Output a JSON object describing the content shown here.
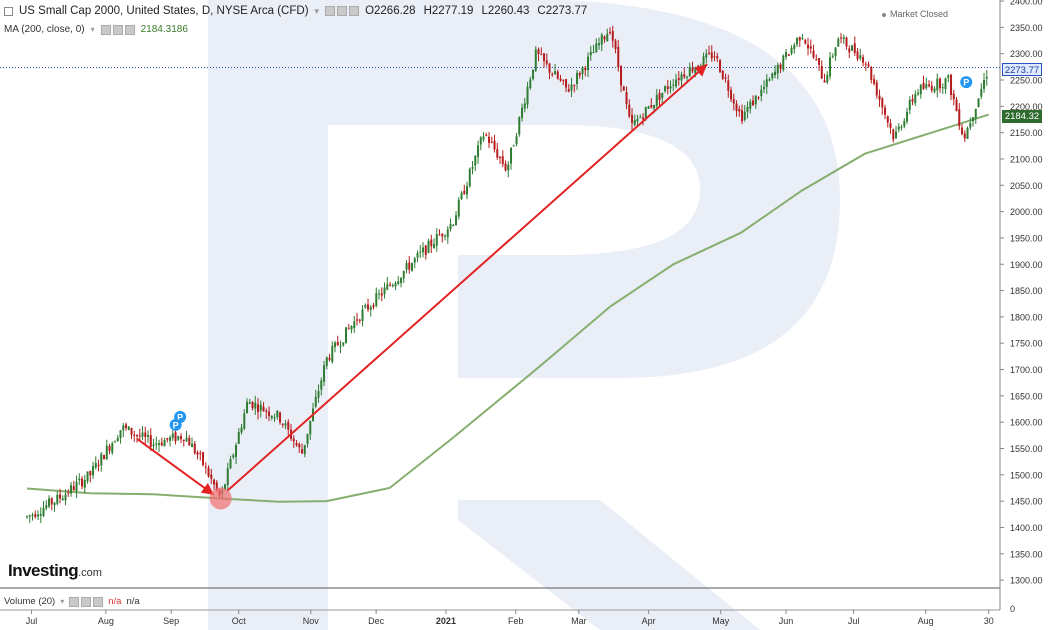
{
  "header": {
    "symbol_title": "US Small Cap 2000, United States, D, NYSE Arca (CFD)",
    "open": "O2266.28",
    "high": "H2277.19",
    "low": "L2260.43",
    "close": "C2273.77",
    "ma_label": "MA (200, close, 0)",
    "ma_value": "2184.3186",
    "market_status": "Market Closed"
  },
  "price_badges": {
    "last": "2273.77",
    "ma": "2184.32"
  },
  "volume_pane": {
    "label": "Volume (20)",
    "value1": "n/a",
    "value2": "n/a"
  },
  "branding": {
    "logo_main": "Investing",
    "logo_suffix": ".com"
  },
  "colors": {
    "up": "#2e7d32",
    "down": "#b71c1c",
    "ma_line": "#86ae6f",
    "arrow": "#e32222",
    "last_price_line": "#2a52be"
  },
  "chart_data": {
    "type": "candlestick",
    "title": "US Small Cap 2000, United States, D, NYSE Arca (CFD)",
    "ylim": [
      1285,
      2402
    ],
    "y_ticks": [
      "2400.00",
      "2350.00",
      "2300.00",
      "2250.00",
      "2200.00",
      "2150.00",
      "2100.00",
      "2050.00",
      "2000.00",
      "1950.00",
      "1900.00",
      "1850.00",
      "1800.00",
      "1750.00",
      "1700.00",
      "1650.00",
      "1600.00",
      "1550.00",
      "1500.00",
      "1450.00",
      "1400.00",
      "1350.00",
      "1300.00"
    ],
    "x_labels": [
      "Jul",
      "Aug",
      "Sep",
      "Oct",
      "Nov",
      "Dec",
      "2021",
      "Feb",
      "Mar",
      "Apr",
      "May",
      "Jun",
      "Jul",
      "Aug",
      "30"
    ],
    "last_price": 2273.77,
    "ma_200_last": 2184.32,
    "price_path": [
      {
        "date": "2020-06-29",
        "close": 1420
      },
      {
        "date": "2020-07-13",
        "close": 1455
      },
      {
        "date": "2020-07-27",
        "close": 1500
      },
      {
        "date": "2020-08-10",
        "close": 1590
      },
      {
        "date": "2020-08-24",
        "close": 1560
      },
      {
        "date": "2020-09-07",
        "close": 1575
      },
      {
        "date": "2020-09-14",
        "close": 1530
      },
      {
        "date": "2020-09-23",
        "close": 1455
      },
      {
        "date": "2020-10-05",
        "close": 1640
      },
      {
        "date": "2020-10-19",
        "close": 1610
      },
      {
        "date": "2020-10-29",
        "close": 1540
      },
      {
        "date": "2020-11-09",
        "close": 1720
      },
      {
        "date": "2020-11-23",
        "close": 1800
      },
      {
        "date": "2020-12-07",
        "close": 1860
      },
      {
        "date": "2020-12-21",
        "close": 1920
      },
      {
        "date": "2021-01-04",
        "close": 1980
      },
      {
        "date": "2021-01-18",
        "close": 2150
      },
      {
        "date": "2021-01-28",
        "close": 2080
      },
      {
        "date": "2021-02-10",
        "close": 2300
      },
      {
        "date": "2021-02-24",
        "close": 2230
      },
      {
        "date": "2021-03-15",
        "close": 2350
      },
      {
        "date": "2021-03-24",
        "close": 2160
      },
      {
        "date": "2021-04-12",
        "close": 2250
      },
      {
        "date": "2021-04-30",
        "close": 2300
      },
      {
        "date": "2021-05-12",
        "close": 2180
      },
      {
        "date": "2021-05-25",
        "close": 2250
      },
      {
        "date": "2021-06-08",
        "close": 2340
      },
      {
        "date": "2021-06-18",
        "close": 2250
      },
      {
        "date": "2021-06-24",
        "close": 2330
      },
      {
        "date": "2021-07-06",
        "close": 2290
      },
      {
        "date": "2021-07-19",
        "close": 2140
      },
      {
        "date": "2021-07-29",
        "close": 2230
      },
      {
        "date": "2021-08-12",
        "close": 2250
      },
      {
        "date": "2021-08-19",
        "close": 2140
      },
      {
        "date": "2021-08-30",
        "close": 2273.77
      }
    ],
    "ma_200": [
      {
        "date": "2020-06-29",
        "value": 1474
      },
      {
        "date": "2020-07-27",
        "value": 1465
      },
      {
        "date": "2020-08-24",
        "value": 1463
      },
      {
        "date": "2020-09-23",
        "value": 1455
      },
      {
        "date": "2020-10-19",
        "value": 1449
      },
      {
        "date": "2020-11-09",
        "value": 1450
      },
      {
        "date": "2020-12-07",
        "value": 1475
      },
      {
        "date": "2021-01-04",
        "value": 1570
      },
      {
        "date": "2021-02-10",
        "value": 1700
      },
      {
        "date": "2021-03-15",
        "value": 1820
      },
      {
        "date": "2021-04-12",
        "value": 1900
      },
      {
        "date": "2021-05-12",
        "value": 1960
      },
      {
        "date": "2021-06-08",
        "value": 2040
      },
      {
        "date": "2021-07-06",
        "value": 2110
      },
      {
        "date": "2021-08-12",
        "value": 2160
      },
      {
        "date": "2021-08-30",
        "value": 2184.32
      }
    ],
    "annotations": [
      {
        "type": "arrow",
        "from": {
          "date": "2020-08-17",
          "value": 1568
        },
        "to": {
          "date": "2020-09-20",
          "value": 1462
        },
        "color": "#e32222"
      },
      {
        "type": "arrow",
        "from": {
          "date": "2020-09-26",
          "value": 1470
        },
        "to": {
          "date": "2021-04-27",
          "value": 2280
        },
        "color": "#e32222"
      },
      {
        "type": "circle",
        "at": {
          "date": "2020-09-23",
          "value": 1455
        }
      },
      {
        "type": "event_marker",
        "label": "P",
        "at": {
          "date": "2020-09-05",
          "value": 1610
        }
      },
      {
        "type": "event_marker",
        "label": "P",
        "at": {
          "date": "2020-09-03",
          "value": 1595
        }
      },
      {
        "type": "event_marker",
        "label": "P",
        "at": {
          "date": "2021-08-20",
          "value": 2246
        }
      }
    ]
  }
}
